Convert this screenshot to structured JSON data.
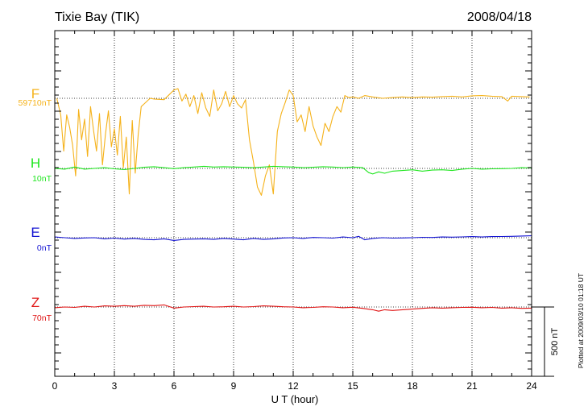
{
  "chart_data": {
    "type": "line",
    "title": "Tixie Bay (TIK)",
    "date": "2008/04/18",
    "xlabel": "U T (hour)",
    "xlim": [
      0,
      24
    ],
    "xticks": [
      "0",
      "3",
      "6",
      "9",
      "12",
      "15",
      "18",
      "21",
      "24"
    ],
    "grid": true,
    "scale_bar": "500 nT",
    "footer": "Plotted at 2009/03/10 01:18 UT",
    "series": [
      {
        "name": "F",
        "baseline": "59710nT",
        "color": "#f5b21a",
        "x": [
          0.1,
          0.3,
          0.45,
          0.6,
          0.75,
          0.9,
          1.05,
          1.2,
          1.35,
          1.5,
          1.65,
          1.8,
          1.95,
          2.1,
          2.25,
          2.4,
          2.55,
          2.7,
          2.85,
          3.0,
          3.15,
          3.3,
          3.45,
          3.6,
          3.75,
          3.9,
          4.05,
          4.2,
          4.35,
          4.5,
          4.65,
          4.8,
          5.0,
          5.5,
          6.0,
          6.2,
          6.4,
          6.6,
          6.8,
          7.0,
          7.2,
          7.4,
          7.6,
          7.8,
          8.0,
          8.2,
          8.4,
          8.6,
          8.8,
          9.0,
          9.2,
          9.4,
          9.6,
          9.8,
          10.0,
          10.2,
          10.4,
          10.6,
          10.8,
          11.0,
          11.2,
          11.4,
          11.6,
          11.8,
          12.0,
          12.2,
          12.4,
          12.6,
          12.8,
          13.0,
          13.2,
          13.4,
          13.6,
          13.8,
          14.0,
          14.2,
          14.4,
          14.6,
          14.8,
          15.0,
          15.3,
          15.6,
          16.0,
          16.5,
          17.0,
          17.5,
          18.0,
          18.5,
          19.0,
          19.5,
          20.0,
          20.5,
          21.0,
          21.5,
          22.0,
          22.5,
          22.8,
          23.0,
          23.5,
          23.9
        ],
        "y": [
          0,
          -120,
          -380,
          -120,
          -210,
          -340,
          -560,
          -80,
          -300,
          -150,
          -420,
          -60,
          -230,
          -380,
          -110,
          -480,
          -260,
          -90,
          -350,
          -220,
          -410,
          -130,
          -500,
          -280,
          -690,
          -160,
          -540,
          -260,
          -60,
          -40,
          -20,
          0,
          -5,
          -10,
          60,
          70,
          -20,
          30,
          -60,
          20,
          -110,
          40,
          -70,
          -130,
          60,
          -90,
          -40,
          50,
          -60,
          20,
          -40,
          -70,
          -10,
          -300,
          -460,
          -640,
          -700,
          -560,
          -480,
          -690,
          -240,
          -110,
          -30,
          60,
          20,
          -170,
          -120,
          -240,
          -60,
          -200,
          -280,
          -340,
          -180,
          -240,
          -130,
          -60,
          -100,
          20,
          5,
          10,
          0,
          20,
          10,
          0,
          5,
          10,
          5,
          10,
          8,
          12,
          15,
          10,
          18,
          20,
          15,
          12,
          -20,
          15,
          12,
          10
        ]
      },
      {
        "name": "H",
        "baseline": "10nT",
        "color": "#1fe61f",
        "x": [
          0.0,
          0.5,
          1.0,
          1.5,
          2.0,
          2.5,
          3.0,
          3.5,
          4.0,
          4.5,
          5.0,
          5.5,
          6.0,
          6.5,
          7.0,
          7.5,
          8.0,
          8.5,
          9.0,
          9.5,
          10.0,
          10.5,
          11.0,
          11.5,
          12.0,
          12.5,
          13.0,
          13.5,
          14.0,
          14.5,
          15.0,
          15.5,
          15.8,
          16.0,
          16.3,
          16.6,
          17.0,
          17.5,
          18.0,
          18.5,
          19.0,
          19.5,
          20.0,
          20.5,
          21.0,
          21.5,
          22.0,
          22.5,
          23.0,
          23.5,
          24.0
        ],
        "y": [
          0,
          -5,
          10,
          -5,
          0,
          5,
          -3,
          -8,
          0,
          8,
          12,
          5,
          -2,
          5,
          10,
          15,
          10,
          12,
          10,
          8,
          5,
          10,
          15,
          12,
          10,
          5,
          8,
          12,
          10,
          6,
          10,
          5,
          -30,
          -40,
          -25,
          -35,
          -20,
          -15,
          -10,
          -20,
          -12,
          -10,
          -15,
          -5,
          0,
          -5,
          -3,
          -2,
          0,
          5,
          3
        ]
      },
      {
        "name": "E",
        "baseline": "0nT",
        "color": "#1414d2",
        "x": [
          0.0,
          0.5,
          1.0,
          1.5,
          2.0,
          2.5,
          3.0,
          3.5,
          4.0,
          4.5,
          5.0,
          5.5,
          6.0,
          6.5,
          7.0,
          7.5,
          8.0,
          8.5,
          9.0,
          9.5,
          10.0,
          10.5,
          11.0,
          11.5,
          12.0,
          12.5,
          13.0,
          13.5,
          14.0,
          14.5,
          15.0,
          15.3,
          15.6,
          16.0,
          16.5,
          17.0,
          17.5,
          18.0,
          18.5,
          19.0,
          19.5,
          20.0,
          20.5,
          21.0,
          21.5,
          22.0,
          22.5,
          23.0,
          23.5,
          24.0
        ],
        "y": [
          5,
          0,
          -5,
          -2,
          0,
          -8,
          -3,
          -10,
          -5,
          -12,
          -15,
          -8,
          -20,
          -12,
          -10,
          -8,
          -12,
          -5,
          -10,
          -15,
          -5,
          -12,
          -8,
          -2,
          0,
          -5,
          2,
          0,
          -3,
          5,
          0,
          10,
          -15,
          -5,
          0,
          -3,
          -2,
          0,
          3,
          2,
          5,
          4,
          6,
          8,
          5,
          8,
          9,
          10,
          12,
          14
        ]
      },
      {
        "name": "Z",
        "baseline": "70nT",
        "color": "#e01414",
        "x": [
          0.0,
          0.5,
          1.0,
          1.5,
          2.0,
          2.5,
          3.0,
          3.5,
          4.0,
          4.5,
          5.0,
          5.5,
          6.0,
          6.5,
          7.0,
          7.5,
          8.0,
          8.5,
          9.0,
          9.5,
          10.0,
          10.5,
          11.0,
          11.5,
          12.0,
          12.5,
          13.0,
          13.5,
          14.0,
          14.5,
          15.0,
          15.5,
          16.0,
          16.3,
          16.6,
          17.0,
          17.5,
          18.0,
          18.5,
          19.0,
          19.5,
          20.0,
          20.5,
          21.0,
          21.5,
          22.0,
          22.5,
          23.0,
          23.5,
          24.0
        ],
        "y": [
          -5,
          0,
          -3,
          5,
          0,
          8,
          5,
          10,
          5,
          12,
          10,
          15,
          -8,
          0,
          3,
          5,
          0,
          2,
          5,
          0,
          3,
          8,
          5,
          2,
          0,
          -5,
          -3,
          2,
          0,
          -5,
          -2,
          -10,
          -20,
          -30,
          -20,
          -25,
          -20,
          -15,
          -10,
          -5,
          -8,
          -5,
          -3,
          -2,
          -5,
          -3,
          -8,
          -5,
          -10,
          -8
        ]
      }
    ]
  }
}
